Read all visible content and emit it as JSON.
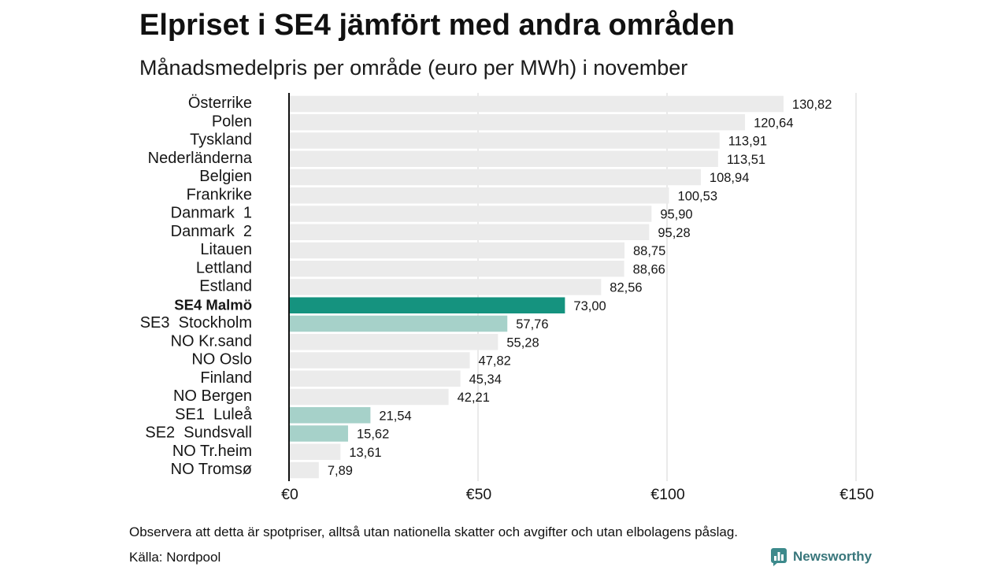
{
  "chart_data": {
    "type": "bar",
    "horizontal": true,
    "title": "Elpriset i SE4 jämfört med andra områden",
    "subtitle": "Månadsmedelpris per område (euro per MWh) i november",
    "categories": [
      "Österrike",
      "Polen",
      "Tyskland",
      "Nederländerna",
      "Belgien",
      "Frankrike",
      "Danmark  1",
      "Danmark  2",
      "Litauen",
      "Lettland",
      "Estland",
      "SE4 Malmö",
      "SE3  Stockholm",
      "NO Kr.sand",
      "NO Oslo",
      "Finland",
      "NO Bergen",
      "SE1  Luleå",
      "SE2  Sundsvall",
      "NO Tr.heim",
      "NO Tromsø"
    ],
    "values": [
      130.82,
      120.64,
      113.91,
      113.51,
      108.94,
      100.53,
      95.9,
      95.28,
      88.75,
      88.66,
      82.56,
      73.0,
      57.76,
      55.28,
      47.82,
      45.34,
      42.21,
      21.54,
      15.62,
      13.61,
      7.89
    ],
    "value_labels": [
      "130,82",
      "120,64",
      "113,91",
      "113,51",
      "108,94",
      "100,53",
      "95,90",
      "95,28",
      "88,75",
      "88,66",
      "82,56",
      "73,00",
      "57,76",
      "55,28",
      "47,82",
      "45,34",
      "42,21",
      "21,54",
      "15,62",
      "13,61",
      "7,89"
    ],
    "bar_colors": [
      "#ebebeb",
      "#ebebeb",
      "#ebebeb",
      "#ebebeb",
      "#ebebeb",
      "#ebebeb",
      "#ebebeb",
      "#ebebeb",
      "#ebebeb",
      "#ebebeb",
      "#ebebeb",
      "#15937f",
      "#a6d1c9",
      "#ebebeb",
      "#ebebeb",
      "#ebebeb",
      "#ebebeb",
      "#a6d1c9",
      "#a6d1c9",
      "#ebebeb",
      "#ebebeb"
    ],
    "bold_label_index": 11,
    "xlim": [
      0,
      150
    ],
    "xticks": [
      0,
      50,
      100,
      150
    ],
    "xtick_labels": [
      "€0",
      "€50",
      "€100",
      "€150"
    ],
    "grid": true
  },
  "footer": {
    "note": "Observera att detta är spotpriser, alltså utan nationella skatter och avgifter och utan elbolagens påslag.",
    "source": "Källa: Nordpool"
  },
  "brand": {
    "name": "Newsworthy",
    "icon": "newsworthy-logo-icon",
    "icon_color": "#3d8a8c",
    "text_color": "#38767b"
  }
}
